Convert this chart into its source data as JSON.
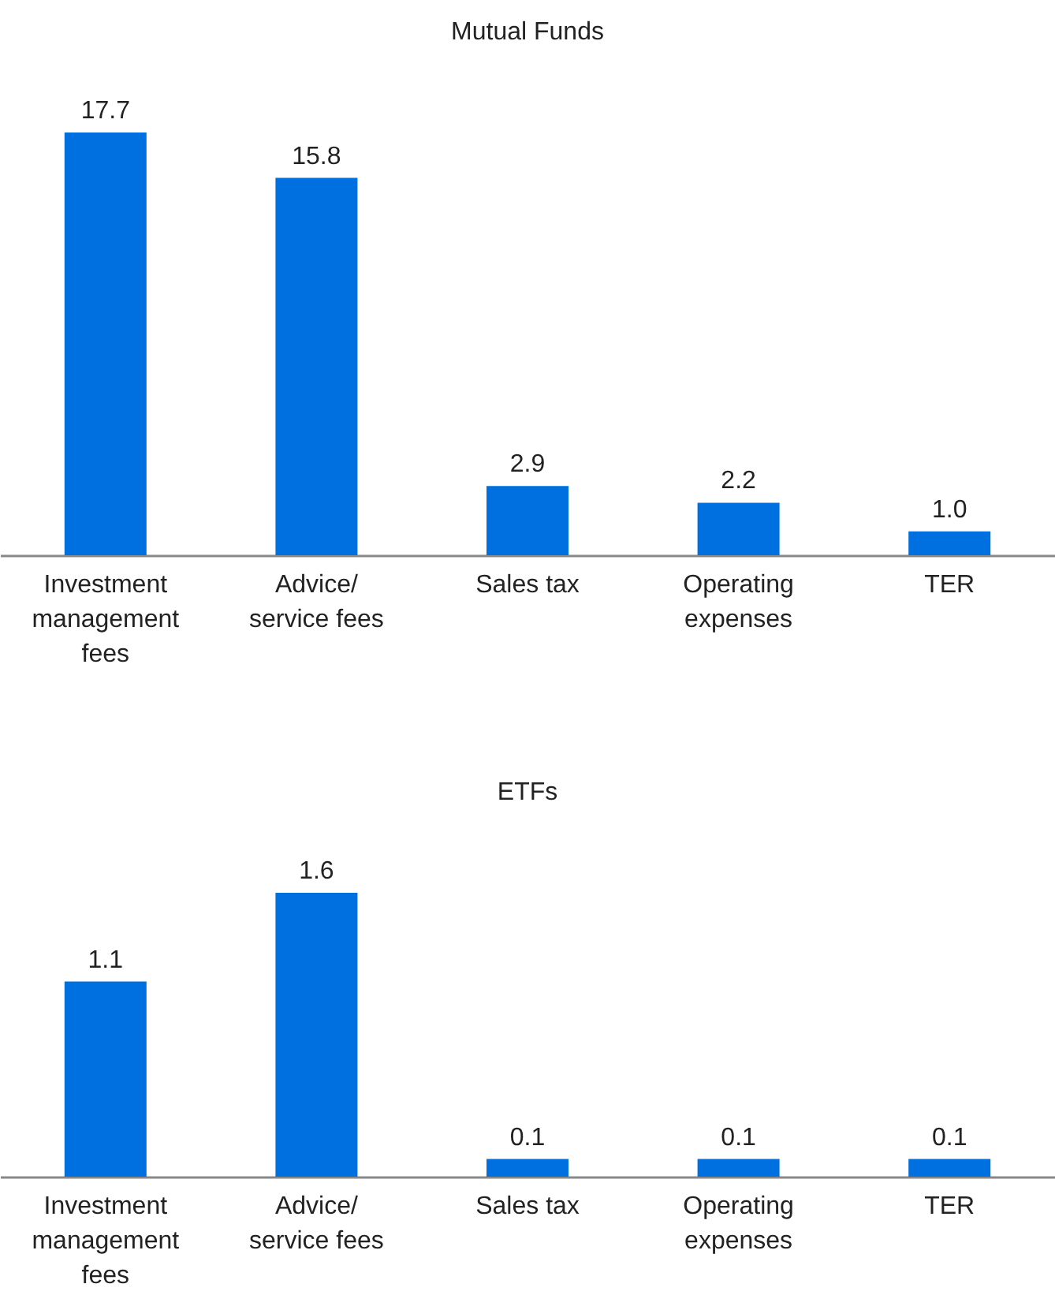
{
  "chart_data": [
    {
      "type": "bar",
      "title": "Mutual Funds",
      "categories": [
        "Investment management fees",
        "Advice/ service fees",
        "Sales tax",
        "Operating expenses",
        "TER"
      ],
      "values": [
        17.7,
        15.8,
        2.9,
        2.2,
        1.0
      ],
      "value_labels": [
        "17.7",
        "15.8",
        "2.9",
        "2.2",
        "1.0"
      ],
      "color": "#0070e0",
      "tick_labels": "x"
    },
    {
      "type": "bar",
      "title": "ETFs",
      "categories": [
        "Investment management fees",
        "Advice/ service fees",
        "Sales tax",
        "Operating expenses",
        "TER"
      ],
      "values": [
        1.1,
        1.6,
        0.1,
        0.1,
        0.1
      ],
      "value_labels": [
        "1.1",
        "1.6",
        "0.1",
        "0.1",
        "0.1"
      ],
      "color": "#0070e0",
      "tick_labels": "x"
    }
  ]
}
